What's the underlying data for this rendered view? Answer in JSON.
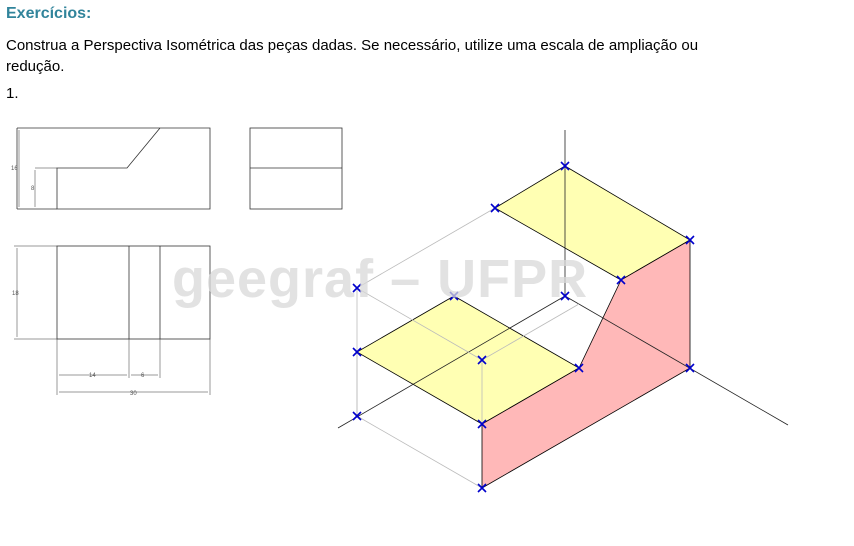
{
  "section_title": "Exercícios:",
  "instruction": "Construa a Perspectiva Isométrica das peças dadas. Se necessário, utilize uma escala de ampliação ou redução.",
  "exercise_number": "1.",
  "watermark": "geegraf – UFPR",
  "dimensions": {
    "front_height_total": "16",
    "front_height_step": "8",
    "top_depth": "18",
    "top_width_a": "14",
    "top_width_b": "6",
    "top_width_total": "30"
  },
  "colors": {
    "title": "#31849b",
    "top_faces": "#ffffb3",
    "side_faces": "#ffb8b8",
    "markers": "#0000cc",
    "construction_lines": "#bbbbbb"
  }
}
